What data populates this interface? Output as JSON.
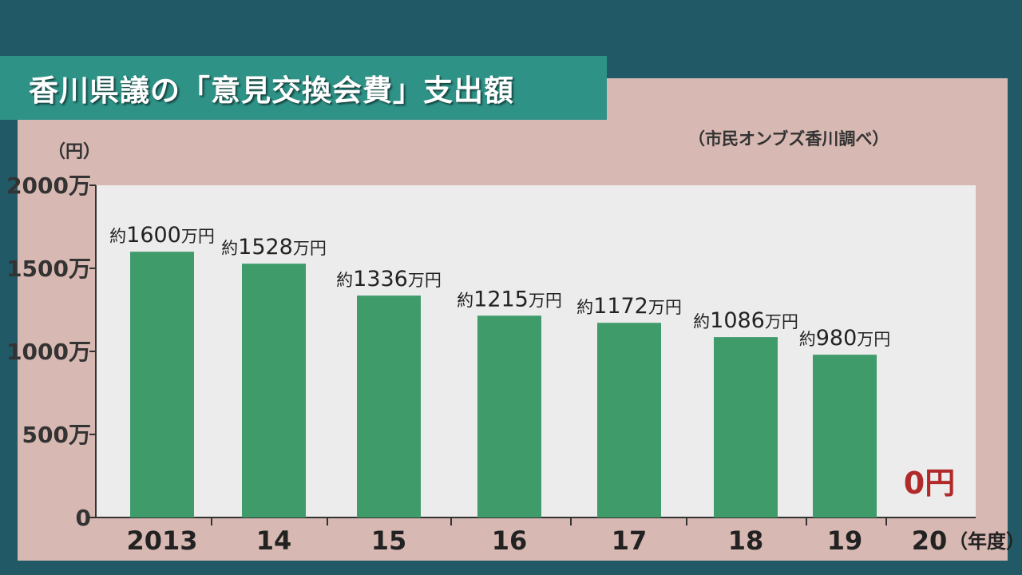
{
  "title": "香川県議の「意見交換会費」支出額",
  "source_note": "（市民オンブズ香川調べ）",
  "unit_label": "（円）",
  "colors": {
    "background": "#215a66",
    "panel": "#d7b8b2",
    "title_bar": "#2e9287",
    "plot": "#ececec",
    "bar": "#3f9b69",
    "zero_label": "#b02a2a"
  },
  "chart_data": {
    "type": "bar",
    "title": "香川県議の「意見交換会費」支出額",
    "xlabel": "（年度）",
    "ylabel": "（円）",
    "ylim": [
      0,
      20000000
    ],
    "yticks": [
      {
        "value": 0,
        "label": "0"
      },
      {
        "value": 5000000,
        "label": "500万"
      },
      {
        "value": 10000000,
        "label": "1000万"
      },
      {
        "value": 15000000,
        "label": "1500万"
      },
      {
        "value": 20000000,
        "label": "2000万"
      }
    ],
    "categories": [
      "2013",
      "14",
      "15",
      "16",
      "17",
      "18",
      "19",
      "20"
    ],
    "values": [
      16000000,
      15280000,
      13360000,
      12150000,
      11720000,
      10860000,
      9800000,
      0
    ],
    "data_labels": [
      "約1600万円",
      "約1528万円",
      "約1336万円",
      "約1215万円",
      "約1172万円",
      "約1086万円",
      "約980万円",
      "0円"
    ],
    "grid": false,
    "legend": "none"
  }
}
